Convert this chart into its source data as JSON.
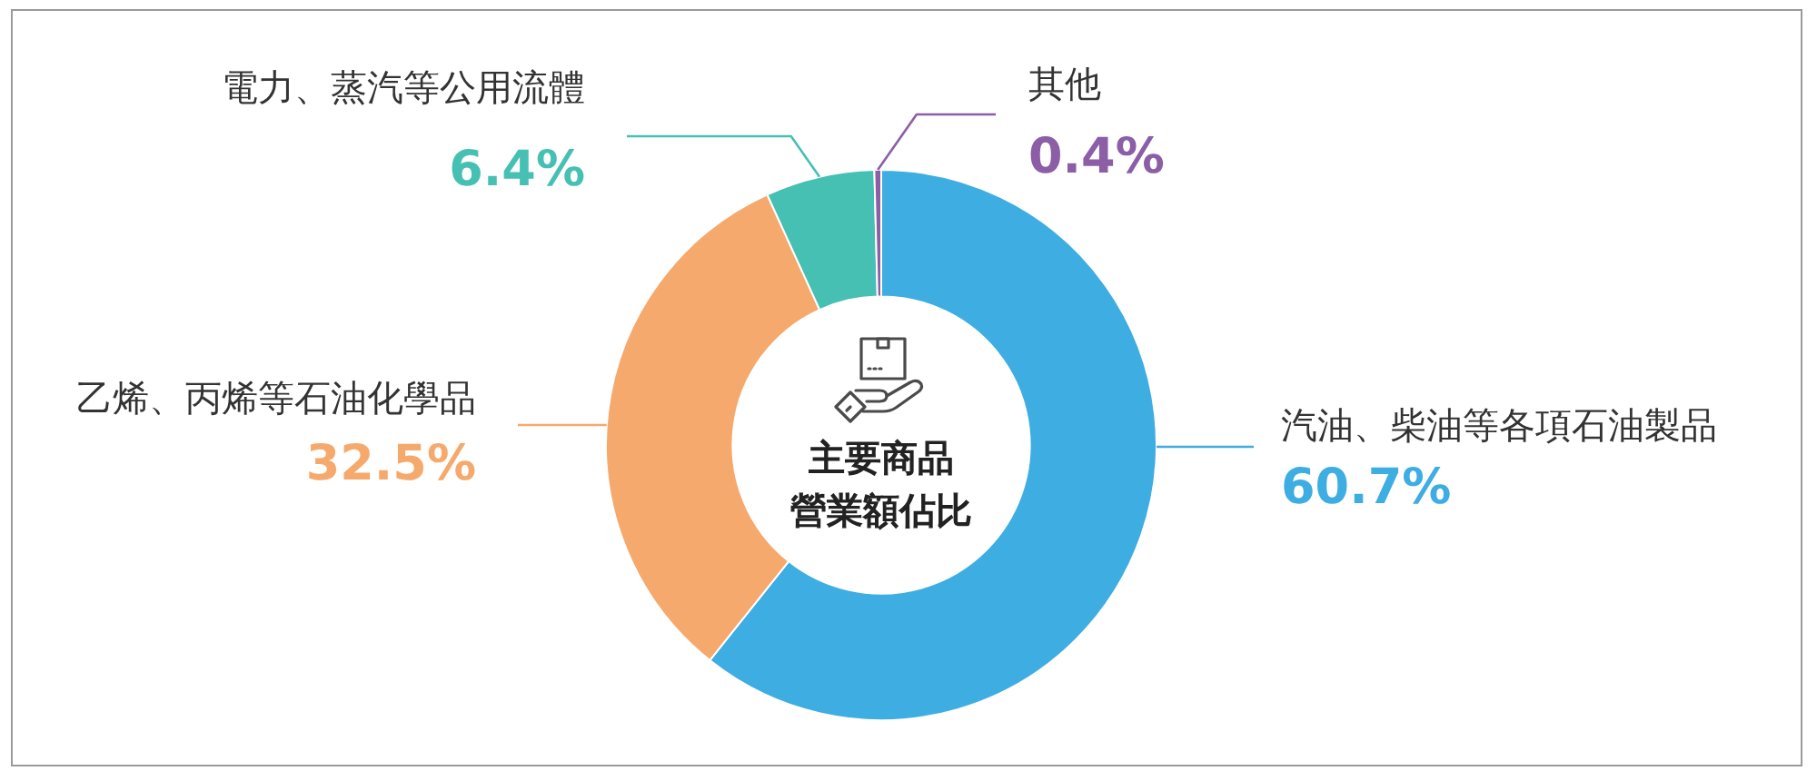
{
  "chart_data": {
    "type": "donut",
    "title": "主要商品營業額佔比",
    "categories": [
      "汽油、柴油等各項石油製品",
      "乙烯、丙烯等石油化學品",
      "電力、蒸汽等公用流體",
      "其他"
    ],
    "values": [
      60.7,
      32.5,
      6.4,
      0.4
    ],
    "colors": [
      "#3eade2",
      "#f6a96c",
      "#47c0b4",
      "#8b5ea6"
    ],
    "value_labels": [
      "60.7%",
      "32.5%",
      "6.4%",
      "0.4%"
    ]
  }
}
